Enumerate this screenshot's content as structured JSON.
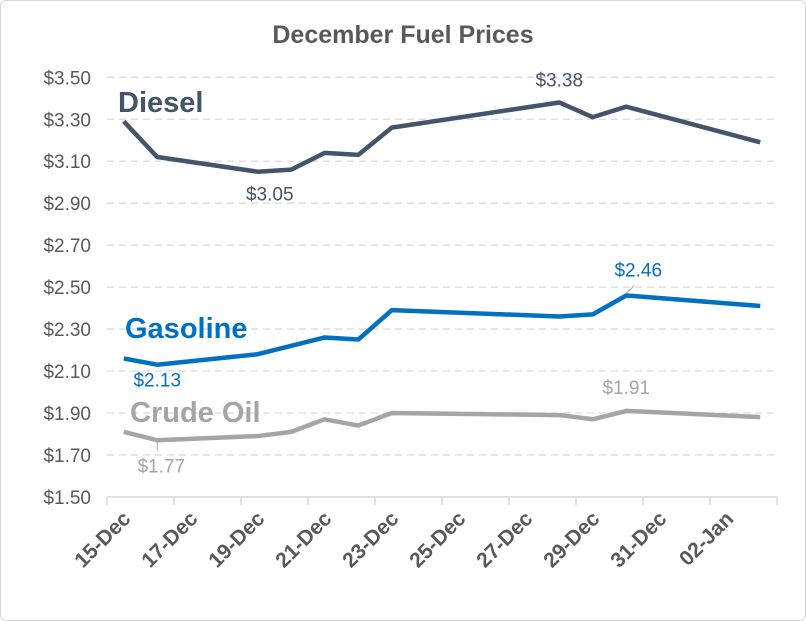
{
  "chart_data": {
    "type": "line",
    "title": "December Fuel Prices",
    "xlabel": "",
    "ylabel": "",
    "ylim": [
      1.5,
      3.5
    ],
    "y_ticks": [
      "$1.50",
      "$1.70",
      "$1.90",
      "$2.10",
      "$2.30",
      "$2.50",
      "$2.70",
      "$2.90",
      "$3.10",
      "$3.30",
      "$3.50"
    ],
    "x_tick_labels": [
      "15-Dec",
      "17-Dec",
      "19-Dec",
      "21-Dec",
      "23-Dec",
      "25-Dec",
      "27-Dec",
      "29-Dec",
      "31-Dec",
      "02-Jan"
    ],
    "x_range_days": [
      0,
      20
    ],
    "grid": "horizontal dashed",
    "legend": "inline labels",
    "x": [
      "15-Dec",
      "16-Dec",
      "19-Dec",
      "20-Dec",
      "21-Dec",
      "22-Dec",
      "23-Dec",
      "28-Dec",
      "29-Dec",
      "30-Dec",
      "03-Jan"
    ],
    "x_day_offset": [
      0,
      1,
      4,
      5,
      6,
      7,
      8,
      13,
      14,
      15,
      19
    ],
    "series": [
      {
        "name": "Diesel",
        "color": "#44546a",
        "values": [
          3.29,
          3.12,
          3.05,
          3.06,
          3.14,
          3.13,
          3.26,
          3.38,
          3.31,
          3.36,
          3.19
        ],
        "labels": [
          {
            "index": 2,
            "text": "$3.05",
            "pos": "below"
          },
          {
            "index": 7,
            "text": "$3.38",
            "pos": "above"
          }
        ]
      },
      {
        "name": "Gasoline",
        "color": "#0070c0",
        "values": [
          2.16,
          2.13,
          2.18,
          2.22,
          2.26,
          2.25,
          2.39,
          2.36,
          2.37,
          2.46,
          2.41
        ],
        "labels": [
          {
            "index": 1,
            "text": "$2.13",
            "pos": "below"
          },
          {
            "index": 9,
            "text": "$2.46",
            "pos": "above"
          }
        ]
      },
      {
        "name": "Crude Oil",
        "color": "#a5a5a5",
        "values": [
          1.81,
          1.77,
          1.79,
          1.81,
          1.87,
          1.84,
          1.9,
          1.89,
          1.87,
          1.91,
          1.88
        ],
        "labels": [
          {
            "index": 1,
            "text": "$1.77",
            "pos": "below"
          },
          {
            "index": 9,
            "text": "$1.91",
            "pos": "above"
          }
        ]
      }
    ]
  }
}
